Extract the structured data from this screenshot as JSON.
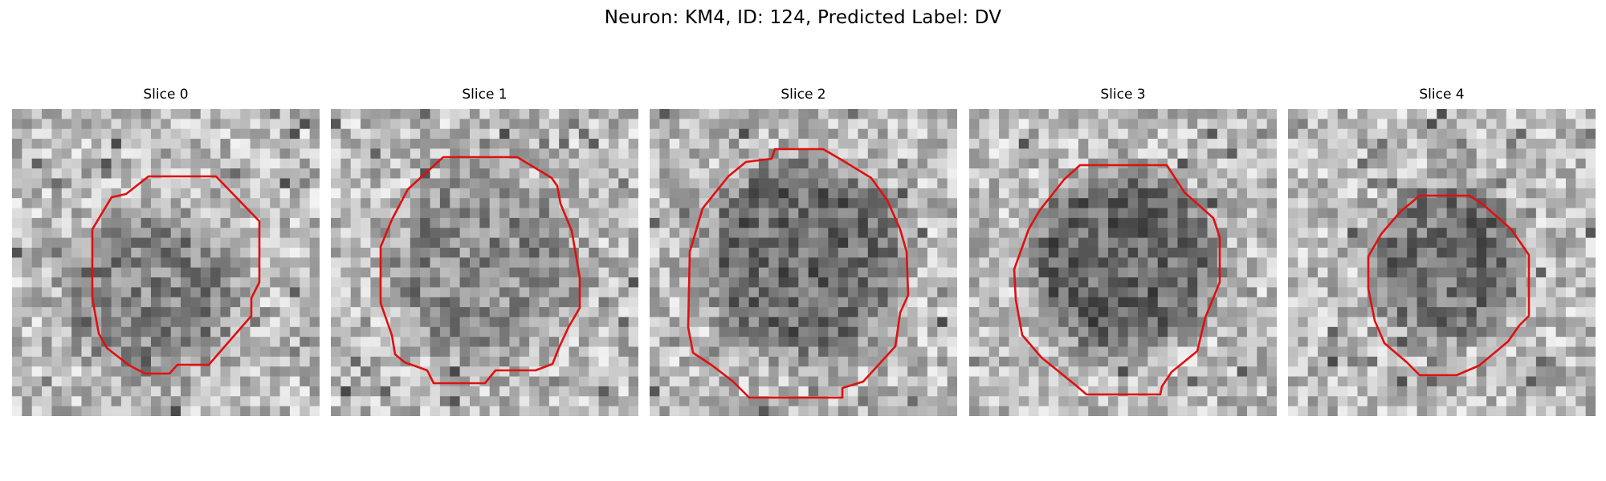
{
  "figure": {
    "title": "Neuron: KM4, ID: 124, Predicted Label: DV"
  },
  "colors": {
    "contour": "#e01010",
    "background": "#ffffff"
  },
  "panels": [
    {
      "title": "Slice 0"
    },
    {
      "title": "Slice 1"
    },
    {
      "title": "Slice 2"
    },
    {
      "title": "Slice 3"
    },
    {
      "title": "Slice 4"
    }
  ]
}
